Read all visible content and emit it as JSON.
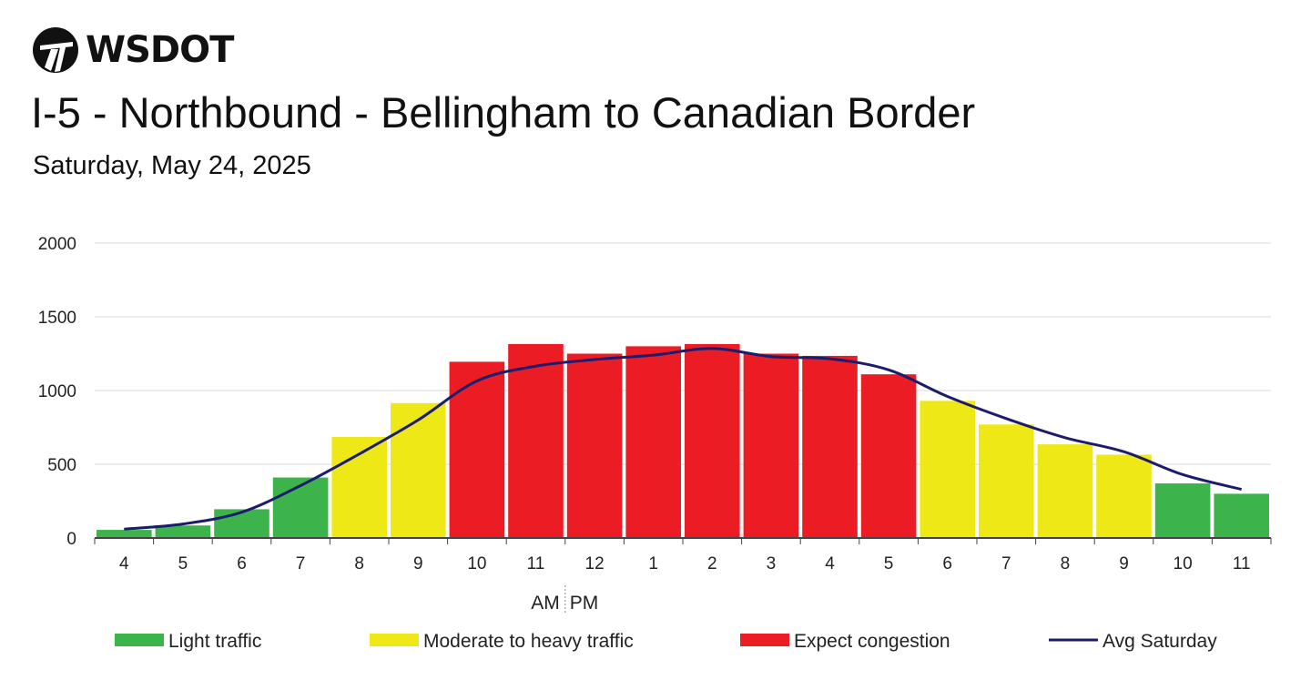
{
  "header": {
    "logo_text": "WSDOT",
    "title": "I-5 - Northbound - Bellingham to Canadian Border",
    "subtitle": "Saturday, May 24, 2025"
  },
  "colors": {
    "light": "#3cb44b",
    "moderate": "#eee817",
    "congestion": "#ec1c24",
    "avg_line": "#1c1c6e",
    "grid": "#e6e6e6",
    "axis": "#444444"
  },
  "chart_data": {
    "type": "bar",
    "ylim": [
      0,
      2000
    ],
    "yticks": [
      0,
      500,
      1000,
      1500,
      2000
    ],
    "grid": true,
    "categories": [
      "4",
      "5",
      "6",
      "7",
      "8",
      "9",
      "10",
      "11",
      "12",
      "1",
      "2",
      "3",
      "4",
      "5",
      "6",
      "7",
      "8",
      "9",
      "10",
      "11"
    ],
    "values": [
      55,
      85,
      195,
      410,
      685,
      915,
      1195,
      1315,
      1250,
      1300,
      1315,
      1250,
      1235,
      1110,
      930,
      770,
      635,
      565,
      370,
      300
    ],
    "levels": [
      "light",
      "light",
      "light",
      "light",
      "moderate",
      "moderate",
      "congestion",
      "congestion",
      "congestion",
      "congestion",
      "congestion",
      "congestion",
      "congestion",
      "congestion",
      "moderate",
      "moderate",
      "moderate",
      "moderate",
      "light",
      "light"
    ],
    "series": [
      {
        "name": "Avg Saturday",
        "type": "line",
        "values": [
          60,
          95,
          175,
          355,
          570,
          800,
          1065,
          1165,
          1210,
          1240,
          1285,
          1230,
          1215,
          1140,
          960,
          810,
          680,
          585,
          430,
          330
        ]
      }
    ],
    "ampm_label": {
      "am": "AM",
      "pm": "PM"
    },
    "legend": [
      {
        "key": "light",
        "label": "Light traffic"
      },
      {
        "key": "moderate",
        "label": "Moderate to heavy traffic"
      },
      {
        "key": "congestion",
        "label": "Expect congestion"
      },
      {
        "key": "avg",
        "label": "Avg Saturday"
      }
    ]
  }
}
